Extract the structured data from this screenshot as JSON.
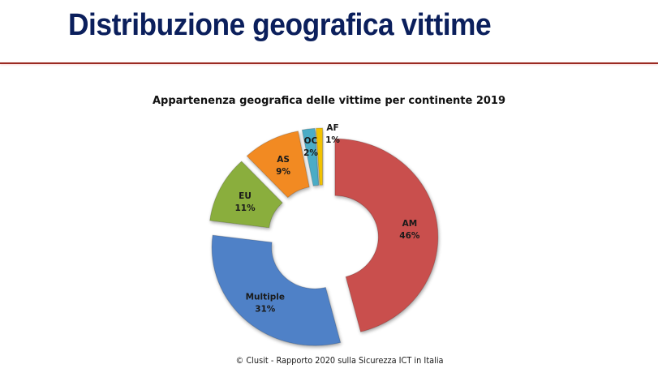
{
  "slide": {
    "title": "Distribuzione geografica vittime",
    "title_color": "#0B1F5C",
    "rule_color": "#9B2A22"
  },
  "chart_data": {
    "type": "pie",
    "variant": "doughnut-exploded",
    "title": "Appartenenza geografica delle vittime per continente 2019",
    "categories": [
      "AM",
      "Multiple",
      "EU",
      "AS",
      "OC",
      "AF"
    ],
    "values": [
      46,
      31,
      11,
      9,
      2,
      1
    ],
    "value_labels": [
      "46%",
      "31%",
      "11%",
      "9%",
      "2%",
      "1%"
    ],
    "colors": [
      "#C9504D",
      "#4F81C7",
      "#8AAE3E",
      "#F28A23",
      "#4BACC6",
      "#F2C200"
    ],
    "start_angle_deg": 0,
    "direction": "clockwise",
    "legend": "none",
    "data_labels": "category + percentage inside slices"
  },
  "footer": {
    "text": "© Clusit - Rapporto 2020 sulla Sicurezza ICT in Italia"
  }
}
